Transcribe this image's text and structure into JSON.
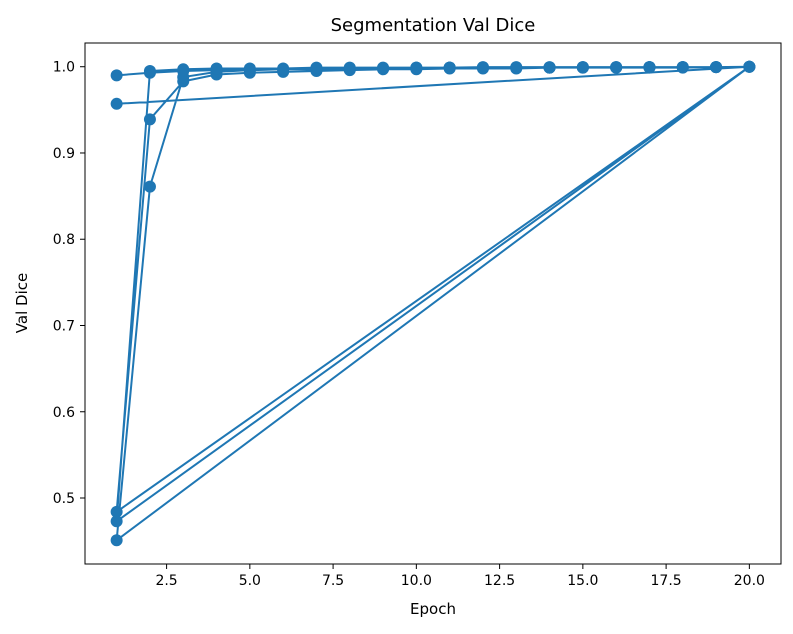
{
  "chart_data": {
    "type": "line",
    "title": "Segmentation Val Dice",
    "xlabel": "Epoch",
    "ylabel": "Val Dice",
    "xlim": [
      0.05,
      20.95
    ],
    "ylim": [
      0.4235,
      1.0275
    ],
    "x_ticks": [
      2.5,
      5.0,
      7.5,
      10.0,
      12.5,
      15.0,
      17.5,
      20.0
    ],
    "x_tick_labels": [
      "2.5",
      "5.0",
      "7.5",
      "10.0",
      "12.5",
      "15.0",
      "17.5",
      "20.0"
    ],
    "y_ticks": [
      0.5,
      0.6,
      0.7,
      0.8,
      0.9,
      1.0
    ],
    "y_tick_labels": [
      "0.5",
      "0.6",
      "0.7",
      "0.8",
      "0.9",
      "1.0"
    ],
    "grid": false,
    "legend": "none",
    "color": "#1f77b4",
    "series": [
      {
        "x": [
          1,
          2,
          3,
          4,
          5,
          6,
          7,
          8,
          9,
          10,
          11,
          12,
          13,
          14,
          15,
          16,
          17,
          18,
          19,
          20,
          1,
          2,
          3,
          4,
          5,
          6,
          7,
          8,
          9,
          10,
          11,
          12,
          13,
          14,
          15,
          16,
          17,
          18,
          19,
          20,
          1,
          2,
          3,
          4,
          5,
          6,
          7,
          8,
          9,
          10,
          11,
          12,
          13,
          14,
          15,
          16,
          17,
          18,
          19,
          20,
          1,
          2,
          3,
          4,
          5,
          6,
          7,
          8,
          9,
          10,
          11,
          12,
          13,
          14,
          15,
          16,
          17,
          18,
          19,
          20,
          1
        ],
        "y": [
          0.99,
          0.993,
          0.995,
          0.996,
          0.997,
          0.997,
          0.998,
          0.998,
          0.998,
          0.999,
          0.999,
          0.999,
          0.999,
          0.999,
          0.9995,
          0.9995,
          0.9995,
          0.9995,
          0.9995,
          1.0,
          0.484,
          0.939,
          0.983,
          0.991,
          0.993,
          0.994,
          0.995,
          0.996,
          0.997,
          0.997,
          0.998,
          0.998,
          0.998,
          0.999,
          0.999,
          0.999,
          0.999,
          0.999,
          0.9995,
          1.0,
          0.451,
          0.861,
          0.988,
          0.994,
          0.996,
          0.997,
          0.997,
          0.998,
          0.998,
          0.998,
          0.999,
          0.999,
          0.999,
          0.999,
          0.999,
          0.999,
          0.9995,
          0.9995,
          0.9995,
          1.0,
          0.473,
          0.995,
          0.997,
          0.998,
          0.998,
          0.998,
          0.999,
          0.999,
          0.999,
          0.999,
          0.999,
          0.9995,
          0.9995,
          0.9995,
          0.9995,
          0.9995,
          0.9995,
          0.9995,
          0.9995,
          1.0,
          0.957
        ]
      }
    ]
  }
}
